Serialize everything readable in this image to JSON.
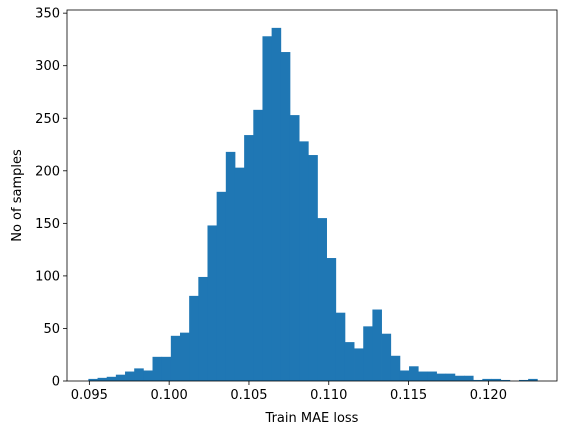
{
  "chart_data": {
    "type": "bar",
    "subtype": "histogram",
    "title": "",
    "xlabel": "Train MAE loss",
    "ylabel": "No of samples",
    "xlim": [
      0.0936,
      0.1243
    ],
    "ylim": [
      0,
      353
    ],
    "xticks": [
      0.095,
      0.1,
      0.105,
      0.11,
      0.115,
      0.12
    ],
    "xtick_labels": [
      "0.095",
      "0.100",
      "0.105",
      "0.110",
      "0.115",
      "0.120"
    ],
    "yticks": [
      0,
      50,
      100,
      150,
      200,
      250,
      300,
      350
    ],
    "ytick_labels": [
      "0",
      "50",
      "100",
      "150",
      "200",
      "250",
      "300",
      "350"
    ],
    "grid": false,
    "color": "#1f77b4",
    "bins": {
      "start": 0.09494,
      "width": 0.000574,
      "counts": [
        2,
        3,
        4,
        6,
        9,
        12,
        10,
        23,
        23,
        43,
        46,
        81,
        99,
        148,
        180,
        218,
        203,
        234,
        258,
        328,
        336,
        313,
        253,
        228,
        215,
        155,
        117,
        65,
        37,
        31,
        52,
        68,
        45,
        24,
        10,
        14,
        9,
        9,
        7,
        7,
        5,
        5,
        1,
        2,
        2,
        1,
        0,
        1,
        2
      ]
    }
  }
}
